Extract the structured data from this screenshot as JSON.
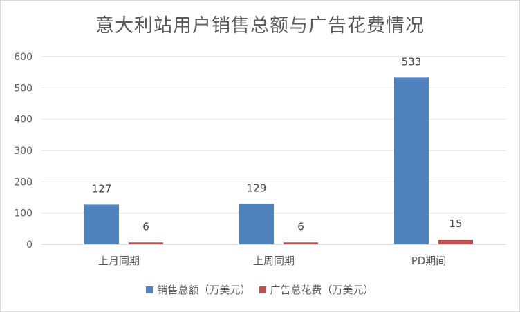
{
  "chart_data": {
    "type": "bar",
    "title": "意大利站用户销售总额与广告花费情况",
    "categories": [
      "上月同期",
      "上周同期",
      "PD期间"
    ],
    "series": [
      {
        "name": "销售总额（万美元）",
        "values": [
          127,
          129,
          533
        ],
        "color": "#4f81bd"
      },
      {
        "name": "广告总花费（万美元）",
        "values": [
          6,
          6,
          15
        ],
        "color": "#c0504d"
      }
    ],
    "yticks": [
      "0",
      "100",
      "200",
      "300",
      "400",
      "500",
      "600"
    ],
    "ylim": [
      0,
      600
    ],
    "grid": true,
    "legend": "bottom",
    "xlabel": "",
    "ylabel": ""
  }
}
